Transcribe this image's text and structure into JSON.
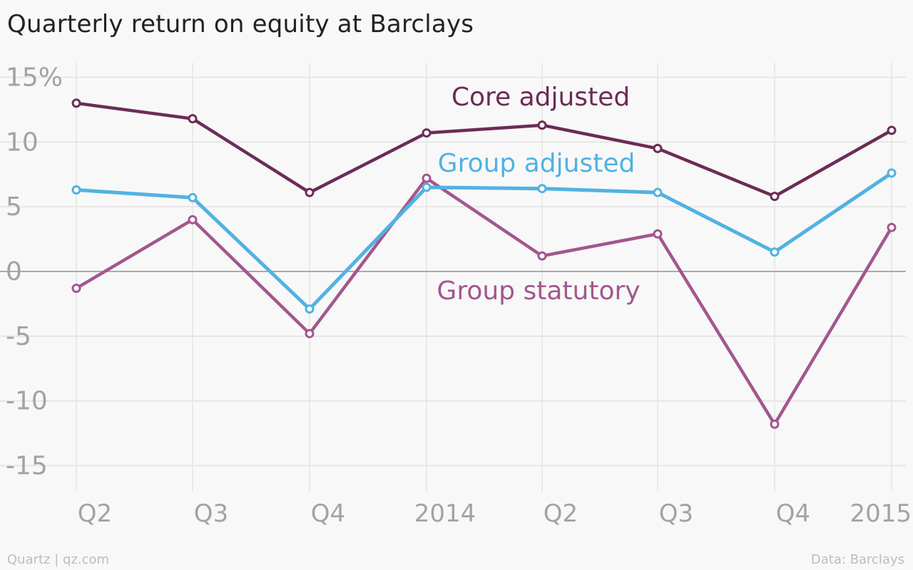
{
  "chart_data": {
    "type": "line",
    "title": "Quarterly return on equity at Barclays",
    "xlabel": "",
    "ylabel": "",
    "x_tick_labels": [
      "Q2",
      "Q3",
      "Q4",
      "2014",
      "Q2",
      "Q3",
      "Q4",
      "2015"
    ],
    "y_ticks": [
      15,
      10,
      5,
      0,
      -5,
      -10,
      -15
    ],
    "y_tick_labels": [
      "15%",
      "10",
      "5",
      "0",
      "-5",
      "-10",
      "-15"
    ],
    "ylim": [
      -17,
      16
    ],
    "grid": true,
    "series": [
      {
        "name": "Core adjusted",
        "color": "#6b2c56",
        "values": [
          13.0,
          11.8,
          6.1,
          10.7,
          11.3,
          9.5,
          5.8,
          10.9
        ]
      },
      {
        "name": "Group adjusted",
        "color": "#51b2e2",
        "values": [
          6.3,
          5.7,
          -2.9,
          6.5,
          6.4,
          6.1,
          1.5,
          7.6
        ]
      },
      {
        "name": "Group statutory",
        "color": "#a2578d",
        "values": [
          -1.3,
          4.0,
          -4.8,
          7.2,
          1.2,
          2.9,
          -11.8,
          3.4
        ]
      }
    ]
  },
  "footer": {
    "source_left": "Quartz | qz.com",
    "source_right": "Data: Barclays"
  }
}
